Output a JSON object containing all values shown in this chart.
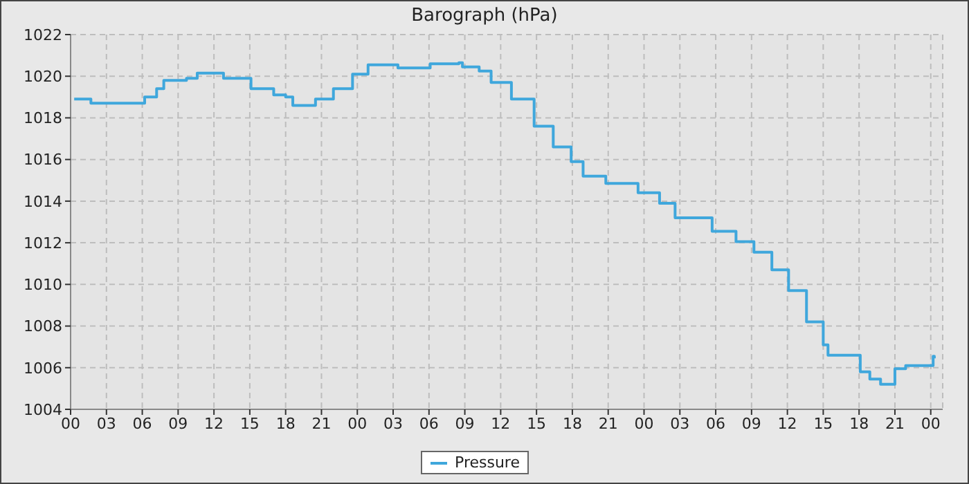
{
  "chart_data": {
    "type": "step",
    "title": "Barograph (hPa)",
    "x": [
      0.3,
      1.7,
      4.4,
      6.2,
      7.2,
      7.8,
      9.7,
      10.6,
      12.8,
      15.1,
      17.0,
      18.0,
      18.6,
      19.5,
      20.5,
      22.0,
      23.6,
      24.9,
      27.4,
      29.4,
      30.1,
      32.5,
      32.8,
      34.2,
      35.2,
      36.9,
      38.8,
      40.4,
      41.9,
      42.9,
      44.8,
      47.5,
      49.3,
      50.6,
      53.7,
      55.7,
      57.2,
      58.7,
      60.1,
      61.6,
      63.0,
      63.4,
      66.1,
      66.9,
      67.8,
      69.0,
      69.9,
      71.1,
      72.2,
      72.3
    ],
    "series": [
      {
        "name": "Pressure",
        "color": "#3fa7dc",
        "values": [
          1018.9,
          1018.7,
          1018.7,
          1019.0,
          1019.4,
          1019.8,
          1019.9,
          1020.15,
          1019.9,
          1019.4,
          1019.1,
          1019.0,
          1018.6,
          1018.6,
          1018.9,
          1019.4,
          1020.1,
          1020.55,
          1020.4,
          1020.4,
          1020.6,
          1020.65,
          1020.45,
          1020.25,
          1019.7,
          1018.9,
          1017.6,
          1016.6,
          1015.9,
          1015.2,
          1014.85,
          1014.4,
          1013.9,
          1013.2,
          1012.55,
          1012.05,
          1011.55,
          1010.7,
          1009.7,
          1008.2,
          1007.1,
          1006.6,
          1005.8,
          1005.45,
          1005.2,
          1005.95,
          1006.1,
          1006.1,
          1006.55,
          1006.45
        ]
      }
    ],
    "xlim": [
      0,
      73
    ],
    "xticks": [
      {
        "value": 0,
        "label": "00"
      },
      {
        "value": 3,
        "label": "03"
      },
      {
        "value": 6,
        "label": "06"
      },
      {
        "value": 9,
        "label": "09"
      },
      {
        "value": 12,
        "label": "12"
      },
      {
        "value": 15,
        "label": "15"
      },
      {
        "value": 18,
        "label": "18"
      },
      {
        "value": 21,
        "label": "21"
      },
      {
        "value": 24,
        "label": "00"
      },
      {
        "value": 27,
        "label": "03"
      },
      {
        "value": 30,
        "label": "06"
      },
      {
        "value": 33,
        "label": "09"
      },
      {
        "value": 36,
        "label": "12"
      },
      {
        "value": 39,
        "label": "15"
      },
      {
        "value": 42,
        "label": "18"
      },
      {
        "value": 45,
        "label": "21"
      },
      {
        "value": 48,
        "label": "00"
      },
      {
        "value": 51,
        "label": "03"
      },
      {
        "value": 54,
        "label": "06"
      },
      {
        "value": 57,
        "label": "09"
      },
      {
        "value": 60,
        "label": "12"
      },
      {
        "value": 63,
        "label": "15"
      },
      {
        "value": 66,
        "label": "18"
      },
      {
        "value": 69,
        "label": "21"
      },
      {
        "value": 72,
        "label": "00"
      }
    ],
    "ylim": [
      1004,
      1022
    ],
    "yticks": [
      1004,
      1006,
      1008,
      1010,
      1012,
      1014,
      1016,
      1018,
      1020,
      1022
    ],
    "grid": true,
    "legend": "bottom",
    "line_style": "solid",
    "marker": "none"
  }
}
